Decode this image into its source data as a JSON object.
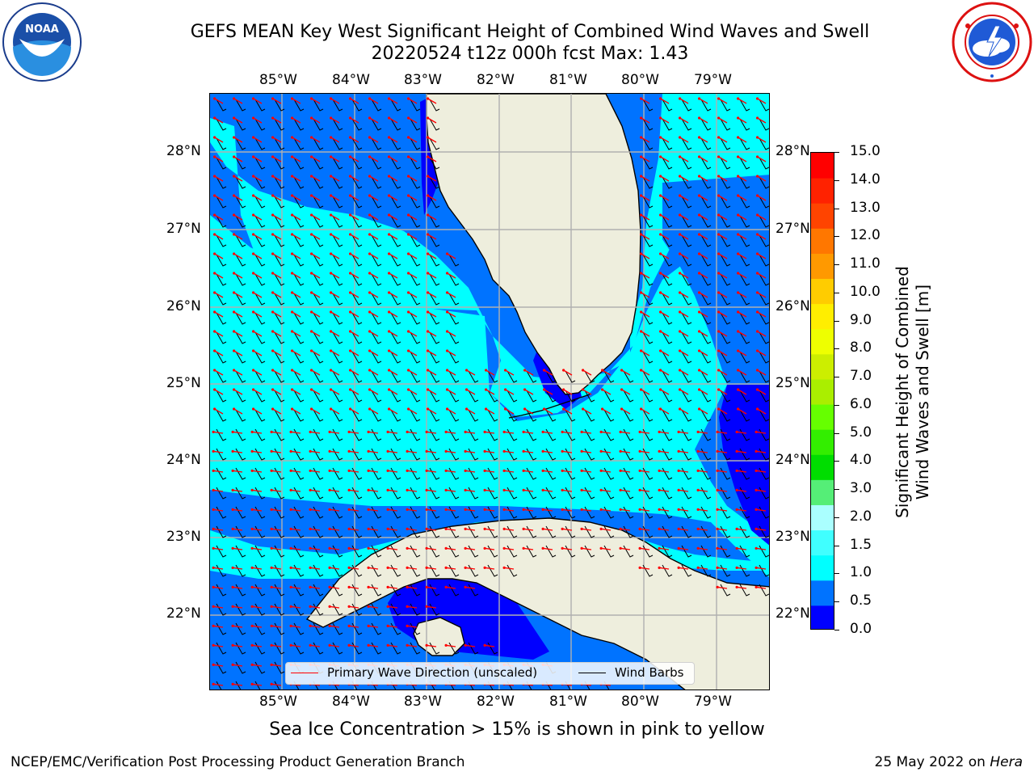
{
  "header": {
    "title_line1": "GEFS MEAN Key West Significant Height of Combined Wind Waves and Swell",
    "title_line2": "20220524 t12z 000h fcst   Max: 1.43"
  },
  "logos": {
    "left": {
      "icon": "noaa-logo-icon",
      "text": "NOAA",
      "ring_text": "NATIONAL OCEANIC AND ATMOSPHERIC ADMINISTRATION · U.S. DEPARTMENT OF COMMERCE"
    },
    "right": {
      "icon": "nws-logo-icon",
      "ring_text": "NATIONAL WEATHER SERVICE"
    }
  },
  "map": {
    "lon_labels": [
      "85°W",
      "84°W",
      "83°W",
      "82°W",
      "81°W",
      "80°W",
      "79°W"
    ],
    "lat_labels": [
      "28°N",
      "27°N",
      "26°N",
      "25°N",
      "24°N",
      "23°N",
      "22°N"
    ],
    "colors": {
      "land": "#eeeedd",
      "ocean_low": "#0000ff",
      "ocean_mid": "#0073ff",
      "ocean_high": "#00ffff",
      "grid": "#b0b0b0",
      "wave_arrow": "#ff0000",
      "wind_barb": "#000000"
    },
    "layers": [
      "Significant Height of Combined Wind Waves and Swell (filled contours)",
      "Primary Wave Direction (red arrows)",
      "Wind Barbs (black)"
    ]
  },
  "colorbar": {
    "label_line1": "Significant Height of Combined",
    "label_line2": "Wind Waves and Swell [m]",
    "ticks": [
      "15.0",
      "14.0",
      "13.0",
      "12.0",
      "11.0",
      "10.0",
      "9.0",
      "8.0",
      "7.0",
      "6.0",
      "5.0",
      "4.0",
      "3.0",
      "2.0",
      "1.5",
      "1.0",
      "0.5",
      "0.0"
    ],
    "colors_bottom_to_top": [
      "#0000ff",
      "#0073ff",
      "#00ffff",
      "#40ffff",
      "#aaffff",
      "#55ee77",
      "#00dd00",
      "#33ee00",
      "#66ff00",
      "#aaee00",
      "#ccee00",
      "#eeff00",
      "#ffee00",
      "#ffcc00",
      "#ff9900",
      "#ff7700",
      "#ff4400",
      "#ff2200",
      "#ff0000"
    ]
  },
  "legend": {
    "wave_label": "Primary Wave Direction (unscaled)",
    "wind_label": "Wind Barbs"
  },
  "footer": {
    "note": "Sea Ice Concentration > 15% is shown in pink to yellow",
    "credit": "NCEP/EMC/Verification Post Processing Product Generation Branch",
    "date": "25 May 2022 on ",
    "host": "Hera"
  }
}
